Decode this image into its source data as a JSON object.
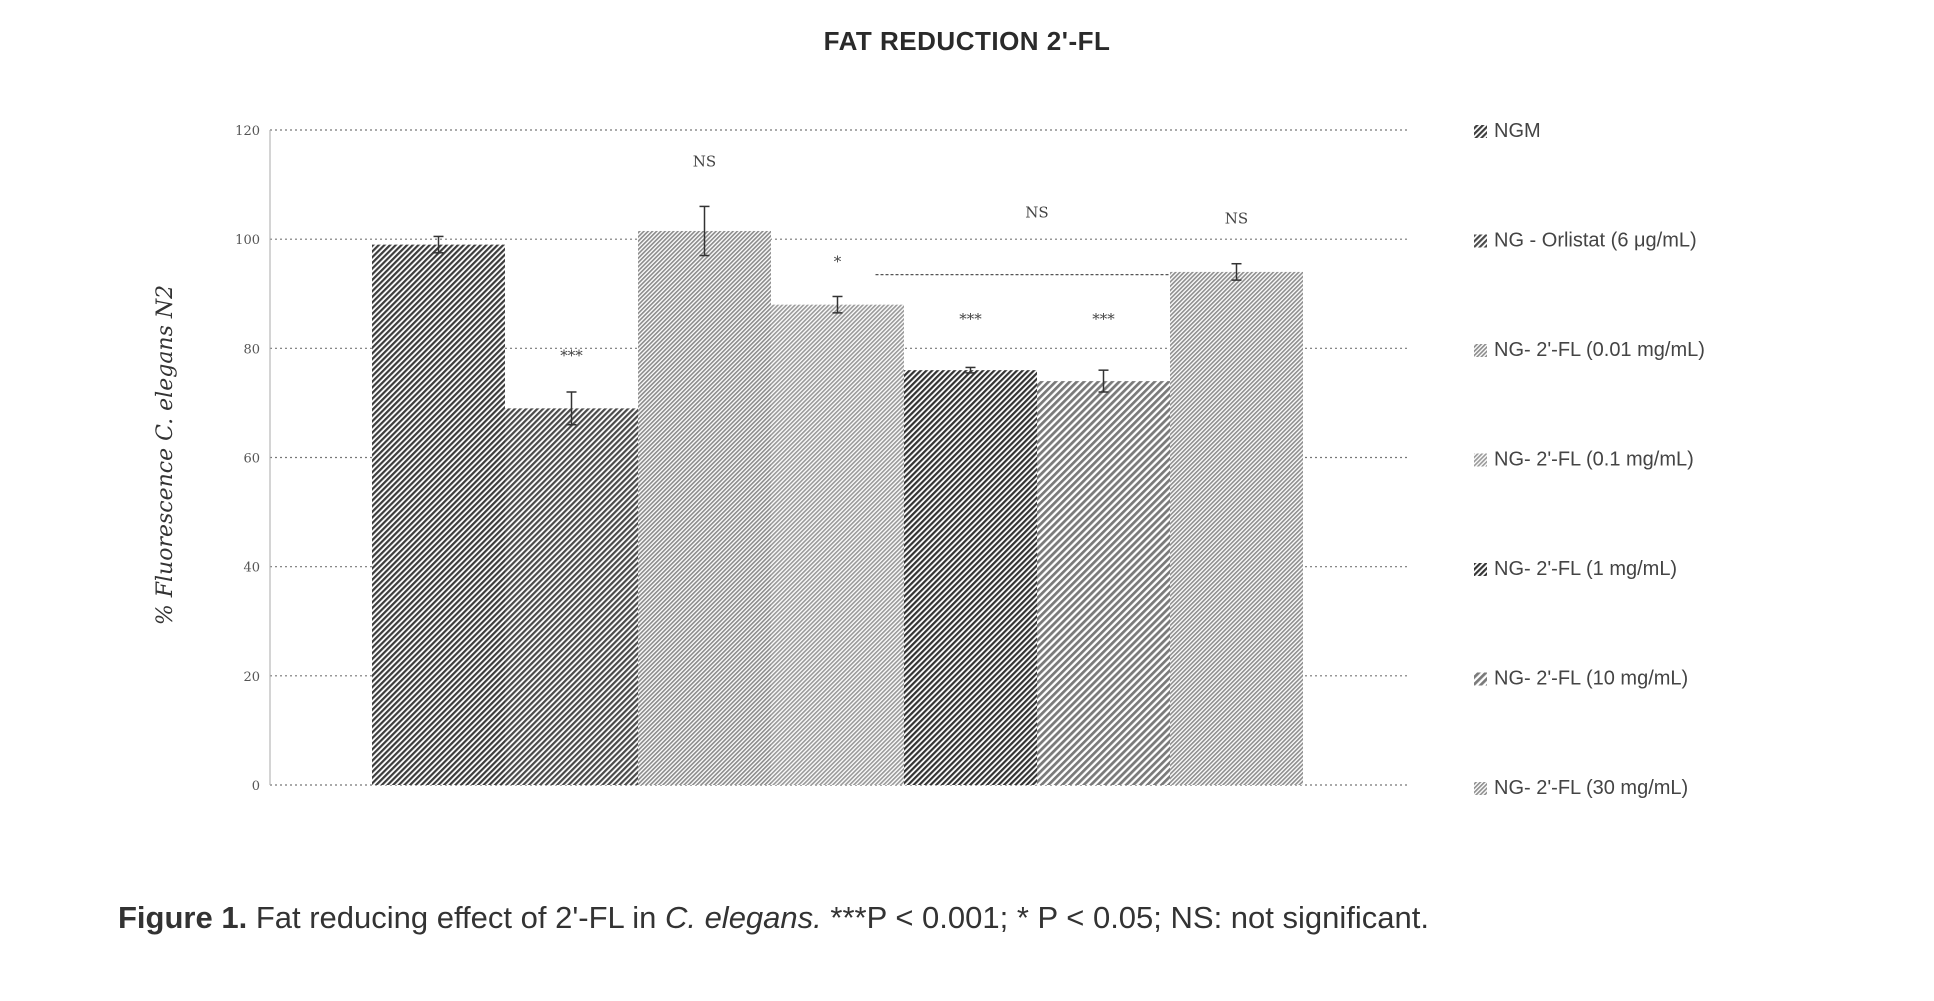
{
  "chart_data": {
    "type": "bar",
    "title": "FAT REDUCTION 2'-FL",
    "ylabel_prefix": "% Fluorescence ",
    "ylabel_italic": "C. elegans",
    "ylabel_suffix": " N2",
    "ylim": [
      0,
      120
    ],
    "yticks": [
      0,
      20,
      40,
      60,
      80,
      100,
      120
    ],
    "grid": true,
    "legend_position": "right",
    "series": [
      {
        "name": "NGM",
        "value": 99,
        "error": 1.5,
        "significance": "",
        "color": "#3c3c3c",
        "pattern": "dense"
      },
      {
        "name": "NG - Orlistat (6 μg/mL)",
        "value": 69,
        "error": 3,
        "significance": "***",
        "color": "#4a4a4a",
        "pattern": "dense"
      },
      {
        "name": "NG- 2'-FL (0.01 mg/mL)",
        "value": 101.5,
        "error": 4.5,
        "significance": "NS",
        "color": "#8c8c8c",
        "pattern": "fine"
      },
      {
        "name": "NG- 2'-FL (0.1 mg/mL)",
        "value": 88,
        "error": 1.5,
        "significance": "*",
        "color": "#9a9a9a",
        "pattern": "fine"
      },
      {
        "name": "NG- 2'-FL (1 mg/mL)",
        "value": 76,
        "error": 0.5,
        "significance": "***",
        "color": "#333333",
        "pattern": "dense"
      },
      {
        "name": "NG- 2'-FL (10 mg/mL)",
        "value": 74,
        "error": 2,
        "significance": "***",
        "color": "#7a7a7a",
        "pattern": "medium"
      },
      {
        "name": "NG- 2'-FL (30 mg/mL)",
        "value": 94,
        "error": 1.5,
        "significance": "NS",
        "color": "#8f8f8f",
        "pattern": "fine"
      }
    ],
    "bracket_annotation": "NS"
  },
  "caption": {
    "label": "Figure 1.",
    "text_before_italic": " Fat reducing effect of 2'-FL in ",
    "italic": "C. elegans.",
    "text_after_italic": " ***P < 0.001; * P < 0.05; NS: not significant."
  }
}
